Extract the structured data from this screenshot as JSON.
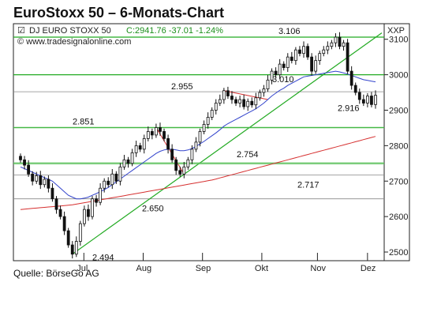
{
  "header": {
    "title": "EuroStoxx 50 – 6-Monats-Chart"
  },
  "footer": {
    "source": "Quelle: BörseGo AG"
  },
  "chart_data": {
    "type": "candlestick",
    "instrument": "DJ EURO STOXX 50",
    "close_info": "C:2941.76 -37.01 -1.24%",
    "website": "© www.tradesignalonline.com",
    "axis_label": "XXP",
    "x_ticks": [
      "Jul",
      "Aug",
      "Sep",
      "Okt",
      "Nov",
      "Dez"
    ],
    "y_ticks": [
      2500,
      2600,
      2700,
      2800,
      2900,
      3000,
      3100
    ],
    "ylim": [
      2480,
      3135
    ],
    "colors": {
      "up": "#ffffff",
      "down": "#111111",
      "grid": "#bbbbbb",
      "green": "#22aa22",
      "red": "#d63030",
      "blue": "#3344cc"
    },
    "horizontal_lines": [
      {
        "value": 3106,
        "color": "green"
      },
      {
        "value": 3000,
        "color": "green"
      },
      {
        "value": 2952,
        "color": "gray"
      },
      {
        "value": 2851,
        "color": "green"
      },
      {
        "value": 2750,
        "color": "green"
      },
      {
        "value": 2717,
        "color": "gray"
      },
      {
        "value": 2650,
        "color": "gray"
      }
    ],
    "annotations": [
      {
        "label": "3.106"
      },
      {
        "label": "3.010"
      },
      {
        "label": "2.955"
      },
      {
        "label": "2.916"
      },
      {
        "label": "2.851"
      },
      {
        "label": "2.754"
      },
      {
        "label": "2.717"
      },
      {
        "label": "2.650"
      },
      {
        "label": "2.494"
      }
    ],
    "close_series": [
      2760,
      2745,
      2720,
      2700,
      2715,
      2690,
      2705,
      2680,
      2650,
      2620,
      2600,
      2560,
      2520,
      2494,
      2530,
      2580,
      2620,
      2600,
      2650,
      2640,
      2680,
      2700,
      2690,
      2720,
      2700,
      2740,
      2760,
      2750,
      2780,
      2800,
      2790,
      2820,
      2840,
      2830,
      2851,
      2840,
      2820,
      2790,
      2760,
      2730,
      2720,
      2740,
      2760,
      2790,
      2810,
      2840,
      2860,
      2880,
      2900,
      2920,
      2930,
      2955,
      2940,
      2930,
      2920,
      2930,
      2910,
      2925,
      2915,
      2935,
      2950,
      2960,
      2985,
      3010,
      3000,
      3030,
      3020,
      3050,
      3040,
      3070,
      3060,
      3080,
      3050,
      3010,
      3040,
      3060,
      3070,
      3080,
      3090,
      3106,
      3080,
      3090,
      3010,
      2970,
      2950,
      2930,
      2920,
      2940,
      2916,
      2942
    ],
    "ma_blue_series": [
      2740,
      2735,
      2730,
      2725,
      2720,
      2715,
      2710,
      2705,
      2700,
      2690,
      2680,
      2670,
      2660,
      2655,
      2650,
      2650,
      2652,
      2655,
      2660,
      2665,
      2670,
      2676,
      2682,
      2690,
      2698,
      2706,
      2714,
      2722,
      2730,
      2738,
      2746,
      2754,
      2762,
      2770,
      2778,
      2784,
      2788,
      2790,
      2790,
      2788,
      2786,
      2786,
      2788,
      2792,
      2798,
      2805,
      2812,
      2820,
      2828,
      2836,
      2845,
      2855,
      2862,
      2868,
      2874,
      2880,
      2886,
      2892,
      2898,
      2904,
      2912,
      2920,
      2930,
      2940,
      2948,
      2956,
      2962,
      2970,
      2976,
      2982,
      2988,
      2994,
      2996,
      2998,
      3000,
      3002,
      3004,
      3006,
      3008,
      3010,
      3008,
      3005,
      3002,
      2998,
      2994,
      2990,
      2986,
      2984,
      2982,
      2980
    ],
    "ma_red_series": [
      2620,
      2621,
      2622,
      2623,
      2624,
      2625,
      2626,
      2627,
      2628,
      2629,
      2630,
      2631,
      2632,
      2633,
      2635,
      2637,
      2639,
      2641,
      2643,
      2645,
      2647,
      2649,
      2651,
      2653,
      2655,
      2657,
      2659,
      2661,
      2663,
      2665,
      2667,
      2669,
      2671,
      2673,
      2675,
      2677,
      2679,
      2681,
      2683,
      2685,
      2687,
      2689,
      2691,
      2693,
      2695,
      2697,
      2699,
      2701,
      2703,
      2706,
      2709,
      2712,
      2715,
      2718,
      2721,
      2724,
      2727,
      2730,
      2733,
      2736,
      2739,
      2742,
      2745,
      2748,
      2751,
      2754,
      2757,
      2760,
      2763,
      2766,
      2769,
      2772,
      2775,
      2778,
      2781,
      2784,
      2787,
      2790,
      2793,
      2796,
      2799,
      2802,
      2805,
      2808,
      2811,
      2814,
      2817,
      2820,
      2823,
      2826
    ],
    "trendline": {
      "from_close": 2494,
      "to_value": 3118
    }
  }
}
